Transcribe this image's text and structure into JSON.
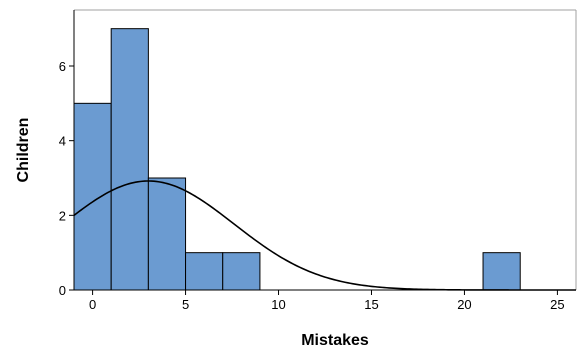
{
  "chart_data": {
    "type": "bar",
    "subtype": "histogram",
    "title": "",
    "xlabel": "Mistakes",
    "ylabel": "Children",
    "xlim": [
      -1,
      26
    ],
    "ylim": [
      0,
      7.5
    ],
    "x_ticks": [
      0,
      5,
      10,
      15,
      20,
      25
    ],
    "y_ticks": [
      0,
      2,
      4,
      6
    ],
    "bin_width": 2,
    "bins": [
      {
        "start": -1,
        "end": 1,
        "count": 5
      },
      {
        "start": 1,
        "end": 3,
        "count": 7
      },
      {
        "start": 3,
        "end": 5,
        "count": 3
      },
      {
        "start": 5,
        "end": 7,
        "count": 1
      },
      {
        "start": 7,
        "end": 9,
        "count": 1
      },
      {
        "start": 21,
        "end": 23,
        "count": 1
      }
    ],
    "normal_curve": {
      "mean": 3.0,
      "peak": 2.92
    },
    "bar_color": "#6b9bd1",
    "bar_edge_color": "#000000",
    "curve_color": "#000000",
    "grid": false
  }
}
